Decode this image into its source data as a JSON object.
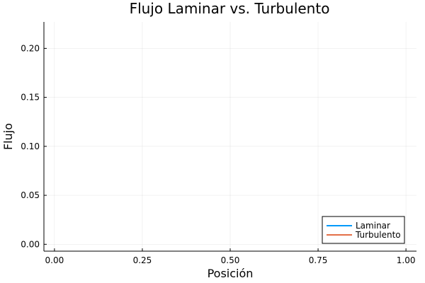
{
  "chart_data": {
    "type": "line",
    "title": "Flujo Laminar vs. Turbulento",
    "xlabel": "Posición",
    "ylabel": "Flujo",
    "xlim": [
      -0.03,
      1.03
    ],
    "ylim": [
      -0.007,
      0.227
    ],
    "xticks": [
      0,
      0.25,
      0.5,
      0.75,
      1.0
    ],
    "xtick_labels": [
      "0.00",
      "0.25",
      "0.50",
      "0.75",
      "1.00"
    ],
    "yticks": [
      0,
      0.05,
      0.1,
      0.15,
      0.2
    ],
    "ytick_labels": [
      "0.00",
      "0.05",
      "0.10",
      "0.15",
      "0.20"
    ],
    "grid": true,
    "legend_position": "bottom-right",
    "series": [
      {
        "name": "Laminar",
        "color": "#009AFA",
        "x": [],
        "y": []
      },
      {
        "name": "Turbulento",
        "color": "#E36F47",
        "x": [],
        "y": []
      }
    ]
  }
}
